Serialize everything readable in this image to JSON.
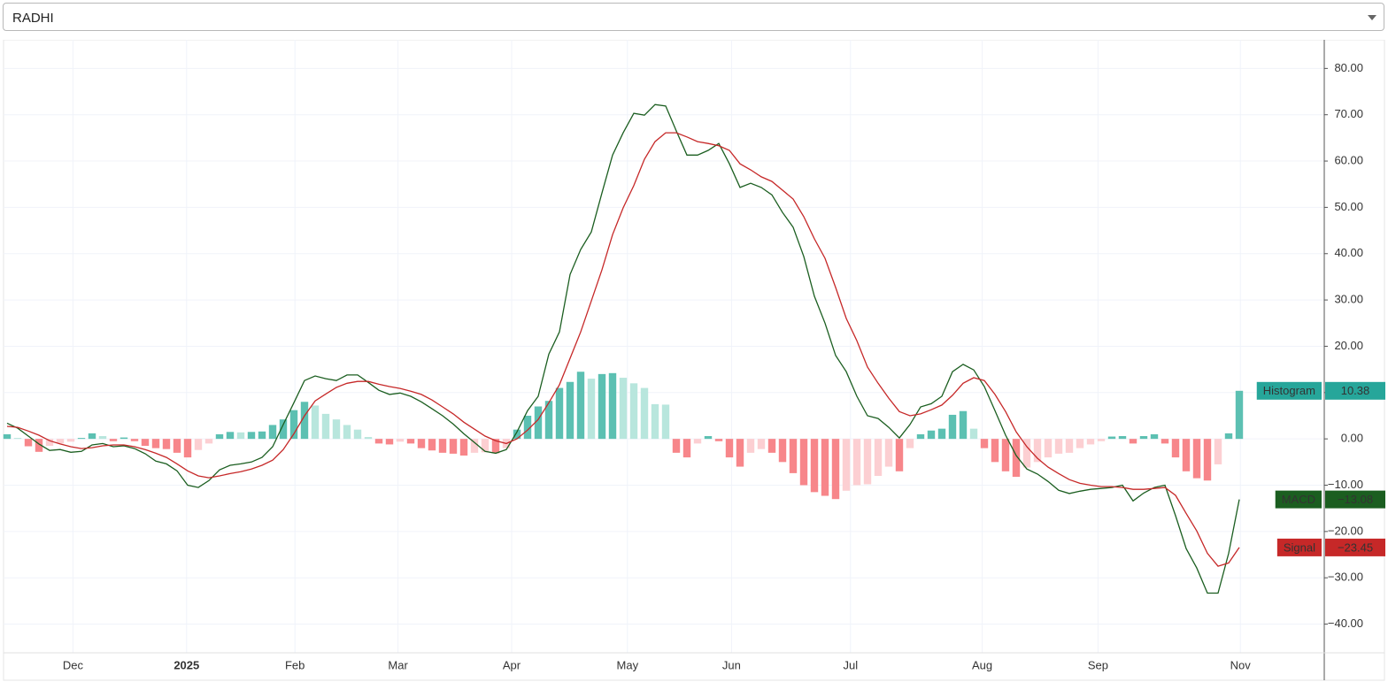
{
  "selector": {
    "value": "RADHI"
  },
  "chart_data": {
    "type": "macd",
    "xlim": [
      0,
      124
    ],
    "xticks": [
      {
        "value": 6.2,
        "label": "Dec"
      },
      {
        "value": 16.9,
        "label": "2025"
      },
      {
        "value": 27.1,
        "label": "Feb"
      },
      {
        "value": 36.8,
        "label": "Mar"
      },
      {
        "value": 47.5,
        "label": "Apr"
      },
      {
        "value": 58.4,
        "label": "May"
      },
      {
        "value": 68.2,
        "label": "Jun"
      },
      {
        "value": 79.4,
        "label": "Jul"
      },
      {
        "value": 91.8,
        "label": "Aug"
      },
      {
        "value": 102.7,
        "label": "Sep"
      },
      {
        "value": 116.1,
        "label": "Nov"
      }
    ],
    "ylim": [
      -46.2,
      85.8
    ],
    "yticks": [
      {
        "value": 80,
        "label": "80.00"
      },
      {
        "value": 70,
        "label": "70.00"
      },
      {
        "value": 60,
        "label": "60.00"
      },
      {
        "value": 50,
        "label": "50.00"
      },
      {
        "value": 40,
        "label": "40.00"
      },
      {
        "value": 30,
        "label": "30.00"
      },
      {
        "value": 20,
        "label": "20.00"
      },
      {
        "value": 10,
        "label": "10.00"
      },
      {
        "value": 0,
        "label": "0.00"
      },
      {
        "value": -10,
        "label": "−10.00"
      },
      {
        "value": -20,
        "label": "−20.00"
      },
      {
        "value": -30,
        "label": "−30.00"
      },
      {
        "value": -40,
        "label": "−40.00"
      }
    ],
    "grid": true,
    "series": [
      {
        "name": "Histogram",
        "kind": "bar",
        "color": "#26a69a",
        "colors": [
          "#5cc0b2",
          "#b8e6dd",
          "#f7868a",
          "#fccfd2"
        ],
        "values": [
          1.0,
          0.2,
          -1.6,
          -2.8,
          -1.5,
          -1.0,
          -0.6,
          0.2,
          1.2,
          0.6,
          -0.5,
          0.3,
          -0.5,
          -1.5,
          -2.0,
          -2.2,
          -3.0,
          -4.0,
          -2.4,
          -1.0,
          1.0,
          1.5,
          1.4,
          1.5,
          1.6,
          3.0,
          4.2,
          6.2,
          8.0,
          7.2,
          5.4,
          4.2,
          3.0,
          2.0,
          0.4,
          -1.0,
          -1.2,
          -0.6,
          -1.0,
          -2.0,
          -2.5,
          -3.0,
          -3.2,
          -3.6,
          -3.0,
          -2.9,
          -3.1,
          -2.0,
          2.0,
          5.0,
          7.0,
          8.2,
          11.0,
          12.3,
          14.5,
          13.0,
          14.0,
          14.2,
          13.2,
          12.0,
          11.0,
          7.5,
          7.4,
          -3.0,
          -4.0,
          -1.0,
          0.6,
          -0.5,
          -4.0,
          -6.0,
          -3.0,
          -2.2,
          -3.0,
          -5.0,
          -7.4,
          -10.0,
          -11.5,
          -12.3,
          -13.0,
          -11.2,
          -10.0,
          -9.8,
          -8.0,
          -6.0,
          -7.0,
          -2.0,
          1.0,
          1.8,
          2.2,
          5.2,
          6.0,
          2.2,
          -2.0,
          -5.0,
          -7.0,
          -8.2,
          -6.2,
          -5.0,
          -4.0,
          -3.2,
          -3.0,
          -2.0,
          -1.2,
          -0.5,
          0.5,
          0.6,
          -1.0,
          0.6,
          1.0,
          -1.0,
          -4.0,
          -7.0,
          -8.5,
          -9.0,
          -5.5,
          1.2,
          10.38
        ]
      },
      {
        "name": "MACD",
        "kind": "line",
        "color": "#1b5e20",
        "last_value_label": "−13.08",
        "values": [
          3.4,
          2.3,
          0.6,
          -1.1,
          -2.5,
          -2.3,
          -2.9,
          -2.7,
          -1.3,
          -1.0,
          -1.7,
          -1.5,
          -2.1,
          -3.2,
          -4.8,
          -5.4,
          -6.9,
          -10.0,
          -10.5,
          -9.0,
          -6.7,
          -5.7,
          -5.4,
          -5.0,
          -4.0,
          -1.7,
          3.1,
          7.8,
          12.6,
          13.6,
          13.0,
          12.6,
          13.8,
          13.8,
          12.2,
          10.5,
          9.6,
          9.9,
          9.2,
          8.0,
          6.5,
          5.0,
          3.2,
          1.1,
          -0.8,
          -2.7,
          -3.1,
          -2.3,
          1.5,
          6.1,
          9.2,
          18.3,
          23.1,
          35.5,
          40.9,
          44.7,
          53.1,
          61.3,
          66.1,
          70.3,
          69.9,
          72.2,
          71.9,
          66.5,
          61.3,
          61.3,
          62.3,
          63.8,
          59.4,
          54.3,
          55.2,
          54.3,
          52.7,
          48.9,
          45.7,
          39.4,
          30.8,
          25.0,
          18.0,
          14.5,
          9.2,
          5.0,
          4.4,
          2.5,
          0.2,
          3.1,
          6.9,
          7.6,
          9.2,
          14.5,
          16.1,
          14.9,
          11.3,
          6.1,
          0.8,
          -3.6,
          -6.5,
          -7.6,
          -9.2,
          -11.1,
          -11.8,
          -11.3,
          -10.9,
          -10.7,
          -10.5,
          -10.0,
          -13.4,
          -11.7,
          -10.5,
          -10.0,
          -16.6,
          -23.7,
          -27.9,
          -33.3,
          -33.3,
          -24.7,
          -13.08
        ]
      },
      {
        "name": "Signal",
        "kind": "line",
        "color": "#c62828",
        "last_value_label": "−23.45",
        "values": [
          2.7,
          2.5,
          1.7,
          0.8,
          -0.4,
          -1.1,
          -1.7,
          -2.1,
          -1.9,
          -1.5,
          -1.3,
          -1.3,
          -1.7,
          -2.3,
          -3.1,
          -4.0,
          -5.4,
          -6.9,
          -8.0,
          -8.4,
          -8.0,
          -7.5,
          -7.1,
          -6.5,
          -5.7,
          -4.6,
          -2.3,
          1.1,
          5.0,
          8.2,
          9.7,
          11.1,
          12.0,
          12.4,
          12.4,
          11.8,
          11.3,
          10.9,
          10.3,
          9.6,
          8.4,
          6.9,
          5.4,
          3.6,
          2.1,
          0.6,
          -0.4,
          -1.0,
          0.0,
          1.9,
          4.2,
          7.8,
          11.7,
          17.4,
          23.1,
          29.8,
          36.5,
          44.1,
          49.9,
          54.7,
          60.4,
          64.2,
          66.1,
          66.1,
          65.2,
          64.2,
          63.8,
          63.3,
          62.3,
          59.4,
          58.1,
          56.6,
          55.6,
          53.7,
          51.8,
          48.0,
          43.2,
          39.0,
          32.7,
          26.0,
          21.2,
          15.5,
          12.0,
          8.8,
          5.9,
          5.0,
          5.4,
          6.3,
          7.3,
          9.4,
          12.0,
          13.2,
          12.6,
          9.6,
          5.9,
          1.5,
          -1.7,
          -4.2,
          -6.1,
          -7.5,
          -8.8,
          -9.6,
          -10.0,
          -10.3,
          -10.3,
          -10.5,
          -10.9,
          -10.9,
          -10.7,
          -10.5,
          -12.2,
          -16.1,
          -19.9,
          -24.7,
          -27.5,
          -26.8,
          -23.45
        ]
      }
    ]
  }
}
